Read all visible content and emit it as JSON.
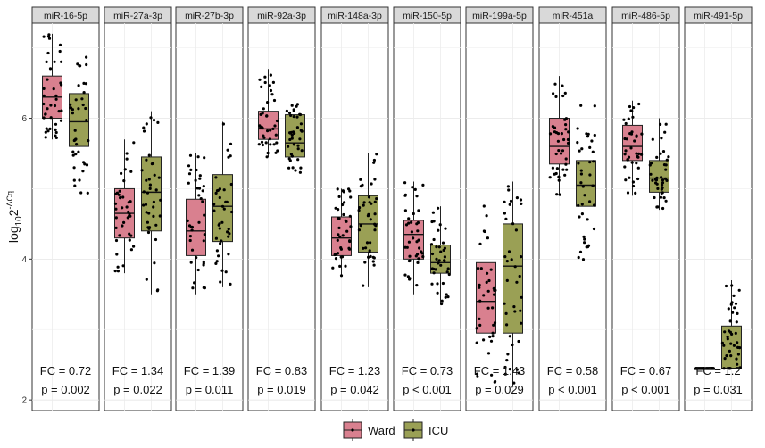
{
  "chart_data": {
    "type": "box",
    "ylabel": {
      "base": "log",
      "sub": "10",
      "main": "2",
      "sup": "-ΔCq"
    },
    "yticks": [
      2,
      4,
      6
    ],
    "ylim": [
      1.85,
      7.35
    ],
    "grid": true,
    "legend": {
      "placement": "bottom",
      "entries": [
        {
          "name": "Ward",
          "color": "#d9808f"
        },
        {
          "name": "ICU",
          "color": "#9aa055"
        }
      ]
    },
    "panels": [
      {
        "name": "miR-16-5p",
        "fc": "FC = 0.72",
        "p": "p = 0.002",
        "ward": {
          "lw": 5.7,
          "q1": 6.0,
          "med": 6.3,
          "q3": 6.6,
          "uw": 7.2
        },
        "icu": {
          "lw": 4.9,
          "q1": 5.6,
          "med": 5.95,
          "q3": 6.35,
          "uw": 7.0
        }
      },
      {
        "name": "miR-27a-3p",
        "fc": "FC = 1.34",
        "p": "p = 0.022",
        "ward": {
          "lw": 3.8,
          "q1": 4.3,
          "med": 4.65,
          "q3": 5.0,
          "uw": 5.7
        },
        "icu": {
          "lw": 3.5,
          "q1": 4.4,
          "med": 4.95,
          "q3": 5.45,
          "uw": 6.1
        }
      },
      {
        "name": "miR-27b-3p",
        "fc": "FC = 1.39",
        "p": "p = 0.011",
        "ward": {
          "lw": 3.5,
          "q1": 4.05,
          "med": 4.4,
          "q3": 4.85,
          "uw": 5.5
        },
        "icu": {
          "lw": 3.6,
          "q1": 4.25,
          "med": 4.75,
          "q3": 5.2,
          "uw": 5.95
        }
      },
      {
        "name": "miR-92a-3p",
        "fc": "FC = 0.83",
        "p": "p = 0.019",
        "ward": {
          "lw": 5.45,
          "q1": 5.7,
          "med": 5.85,
          "q3": 6.1,
          "uw": 6.7
        },
        "icu": {
          "lw": 5.2,
          "q1": 5.45,
          "med": 5.65,
          "q3": 6.05,
          "uw": 6.2
        }
      },
      {
        "name": "miR-148a-3p",
        "fc": "FC = 1.23",
        "p": "p = 0.042",
        "ward": {
          "lw": 3.75,
          "q1": 4.05,
          "med": 4.3,
          "q3": 4.6,
          "uw": 5.0
        },
        "icu": {
          "lw": 3.6,
          "q1": 4.1,
          "med": 4.5,
          "q3": 4.9,
          "uw": 5.5
        }
      },
      {
        "name": "miR-150-5p",
        "fc": "FC = 0.73",
        "p": "p < 0.001",
        "ward": {
          "lw": 3.5,
          "q1": 4.0,
          "med": 4.35,
          "q3": 4.55,
          "uw": 5.1
        },
        "icu": {
          "lw": 3.35,
          "q1": 3.8,
          "med": 3.95,
          "q3": 4.2,
          "uw": 4.75
        }
      },
      {
        "name": "miR-199a-5p",
        "fc": "FC = 1.43",
        "p": "p = 0.029",
        "ward": {
          "lw": 2.2,
          "q1": 2.95,
          "med": 3.4,
          "q3": 3.95,
          "uw": 4.8
        },
        "icu": {
          "lw": 2.2,
          "q1": 2.95,
          "med": 3.9,
          "q3": 4.5,
          "uw": 5.1
        }
      },
      {
        "name": "miR-451a",
        "fc": "FC = 0.58",
        "p": "p < 0.001",
        "ward": {
          "lw": 4.9,
          "q1": 5.35,
          "med": 5.6,
          "q3": 6.0,
          "uw": 6.6
        },
        "icu": {
          "lw": 3.85,
          "q1": 4.75,
          "med": 5.05,
          "q3": 5.4,
          "uw": 6.2
        }
      },
      {
        "name": "miR-486-5p",
        "fc": "FC = 0.67",
        "p": "p < 0.001",
        "ward": {
          "lw": 4.9,
          "q1": 5.4,
          "med": 5.6,
          "q3": 5.9,
          "uw": 6.25
        },
        "icu": {
          "lw": 4.7,
          "q1": 4.95,
          "med": 5.15,
          "q3": 5.4,
          "uw": 6.0
        }
      },
      {
        "name": "miR-491-5p",
        "fc": "FC = 1.2",
        "p": "p = 0.031",
        "ward": {
          "lw": 2.45,
          "q1": 2.45,
          "med": 2.45,
          "q3": 2.45,
          "uw": 2.45
        },
        "icu": {
          "lw": 2.45,
          "q1": 2.45,
          "med": 2.45,
          "q3": 3.05,
          "uw": 3.7
        }
      }
    ]
  }
}
